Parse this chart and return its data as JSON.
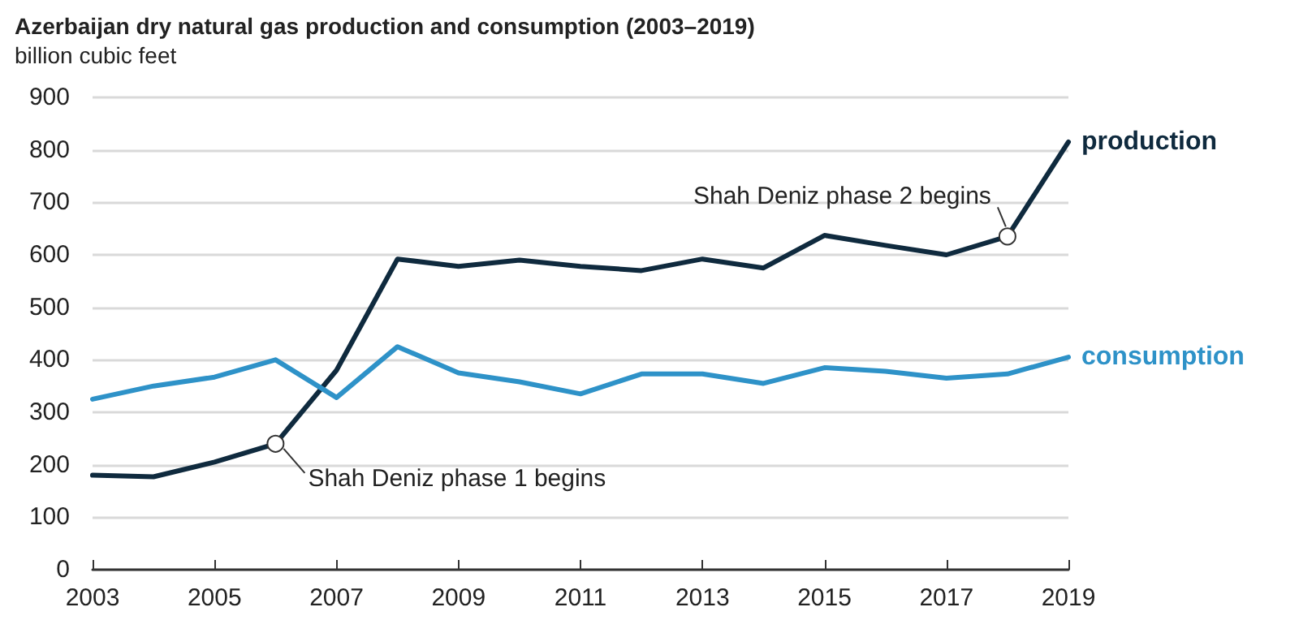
{
  "chart_data": {
    "type": "line",
    "title": "Azerbaijan dry natural gas production and consumption (2003–2019)",
    "ylabel": "billion cubic feet",
    "x": [
      2003,
      2004,
      2005,
      2006,
      2007,
      2008,
      2009,
      2010,
      2011,
      2012,
      2013,
      2014,
      2015,
      2016,
      2017,
      2018,
      2019
    ],
    "series": [
      {
        "name": "production",
        "color": "#0f2a3e",
        "values": [
          180,
          177,
          205,
          240,
          380,
          592,
          578,
          590,
          578,
          570,
          592,
          575,
          637,
          618,
          600,
          635,
          815
        ]
      },
      {
        "name": "consumption",
        "color": "#2e92c8",
        "values": [
          325,
          350,
          367,
          400,
          328,
          425,
          375,
          358,
          335,
          373,
          373,
          355,
          385,
          378,
          365,
          373,
          405
        ]
      }
    ],
    "xlim": [
      2003,
      2019
    ],
    "xticks": [
      2003,
      2005,
      2007,
      2009,
      2011,
      2013,
      2015,
      2017,
      2019
    ],
    "ylim": [
      0,
      900
    ],
    "yticks": [
      0,
      100,
      200,
      300,
      400,
      500,
      600,
      700,
      800,
      900
    ],
    "grid": "y",
    "marker": "none",
    "line_style": "solid",
    "annotations": [
      {
        "text": "Shah Deniz phase 1 begins",
        "x": 2006,
        "y": 240
      },
      {
        "text": "Shah Deniz phase 2 begins",
        "x": 2018,
        "y": 635
      }
    ]
  }
}
